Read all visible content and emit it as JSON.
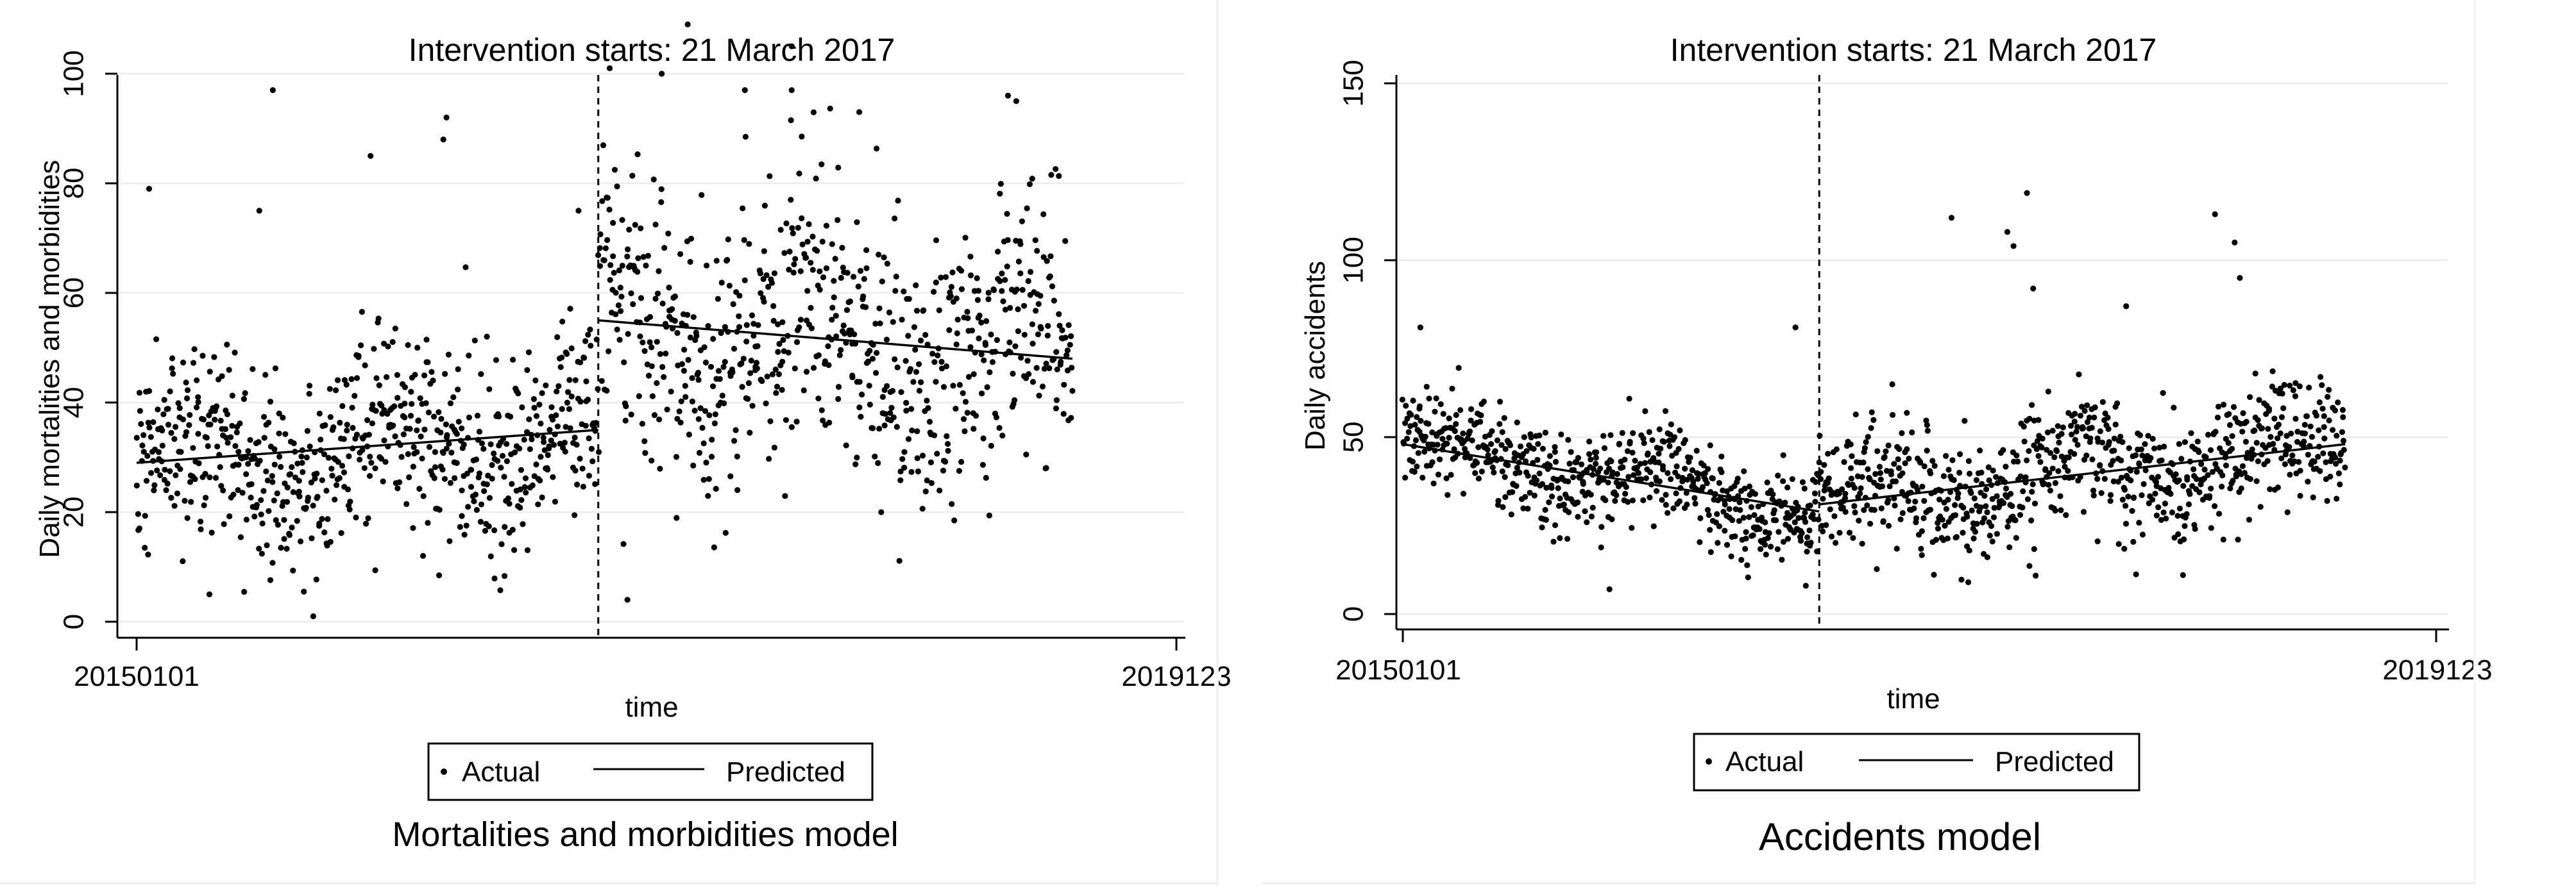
{
  "chart_data": [
    {
      "type": "scatter",
      "title": "Intervention starts: 21 March 2017",
      "caption": "Mortalities and morbidities model",
      "xlabel": "time",
      "ylabel": "Daily mortalities and morbidities",
      "x_tick_labels": [
        "20150101",
        "2019123"
      ],
      "y_ticks": [
        0,
        20,
        40,
        60,
        80,
        100
      ],
      "ylim": [
        0,
        110
      ],
      "grid": true,
      "legend": {
        "position": "bottom",
        "items": [
          "Actual",
          "Predicted"
        ]
      },
      "intervention": {
        "fraction": 0.444
      },
      "series": [
        {
          "name": "Actual",
          "kind": "points",
          "pre_mean": {
            "start": 29,
            "end": 35
          },
          "post_mean": {
            "start": 55,
            "end": 48
          },
          "spread_pre": 11,
          "spread_post": 15,
          "count": 1400,
          "data_end_fraction": 0.9,
          "outliers": [
            {
              "t": 0.012,
              "y": 79
            },
            {
              "t": 0.131,
              "y": 97
            },
            {
              "t": 0.118,
              "y": 75
            },
            {
              "t": 0.225,
              "y": 85
            },
            {
              "t": 0.298,
              "y": 92
            },
            {
              "t": 0.295,
              "y": 88
            },
            {
              "t": 0.07,
              "y": 5
            },
            {
              "t": 0.425,
              "y": 75
            },
            {
              "t": 0.472,
              "y": 4
            },
            {
              "t": 0.455,
              "y": 101
            },
            {
              "t": 0.505,
              "y": 100
            },
            {
              "t": 0.53,
              "y": 109
            },
            {
              "t": 0.63,
              "y": 97
            },
            {
              "t": 0.63,
              "y": 105
            },
            {
              "t": 0.838,
              "y": 96
            },
            {
              "t": 0.846,
              "y": 95
            },
            {
              "t": 0.695,
              "y": 93
            },
            {
              "t": 0.585,
              "y": 97
            }
          ]
        },
        {
          "name": "Predicted",
          "kind": "line",
          "segments": [
            {
              "t": [
                0.0,
                0.444
              ],
              "y": [
                29,
                35
              ]
            },
            {
              "t": [
                0.444,
                0.9
              ],
              "y": [
                55,
                48
              ]
            }
          ]
        }
      ]
    },
    {
      "type": "scatter",
      "title": "Intervention starts: 21 March 2017",
      "caption": "Accidents model",
      "xlabel": "time",
      "ylabel": "Daily accidents",
      "x_tick_labels": [
        "20150101",
        "2019123"
      ],
      "y_ticks": [
        0,
        50,
        100,
        150
      ],
      "ylim": [
        0,
        150
      ],
      "grid": true,
      "legend": {
        "position": "bottom",
        "items": [
          "Actual",
          "Predicted"
        ]
      },
      "intervention": {
        "fraction": 0.403
      },
      "series": [
        {
          "name": "Actual",
          "kind": "points",
          "pre_mean": {
            "start": 48,
            "end": 29
          },
          "post_mean": {
            "start": 31,
            "end": 48
          },
          "spread_pre": 8,
          "spread_post": 11,
          "count": 1400,
          "data_end_fraction": 0.912,
          "outliers": [
            {
              "t": 0.531,
              "y": 112
            },
            {
              "t": 0.604,
              "y": 119
            },
            {
              "t": 0.591,
              "y": 104
            },
            {
              "t": 0.61,
              "y": 92
            },
            {
              "t": 0.786,
              "y": 113
            },
            {
              "t": 0.805,
              "y": 105
            },
            {
              "t": 0.81,
              "y": 95
            },
            {
              "t": 0.38,
              "y": 81
            },
            {
              "t": 0.017,
              "y": 81
            },
            {
              "t": 0.2,
              "y": 7
            },
            {
              "t": 0.39,
              "y": 8
            },
            {
              "t": 0.585,
              "y": 108
            },
            {
              "t": 0.7,
              "y": 87
            },
            {
              "t": 0.755,
              "y": 11
            }
          ]
        },
        {
          "name": "Predicted",
          "kind": "line",
          "segments": [
            {
              "t": [
                0.0,
                0.403
              ],
              "y": [
                48,
                29
              ]
            },
            {
              "t": [
                0.403,
                0.912
              ],
              "y": [
                31,
                48
              ]
            }
          ]
        }
      ]
    }
  ]
}
